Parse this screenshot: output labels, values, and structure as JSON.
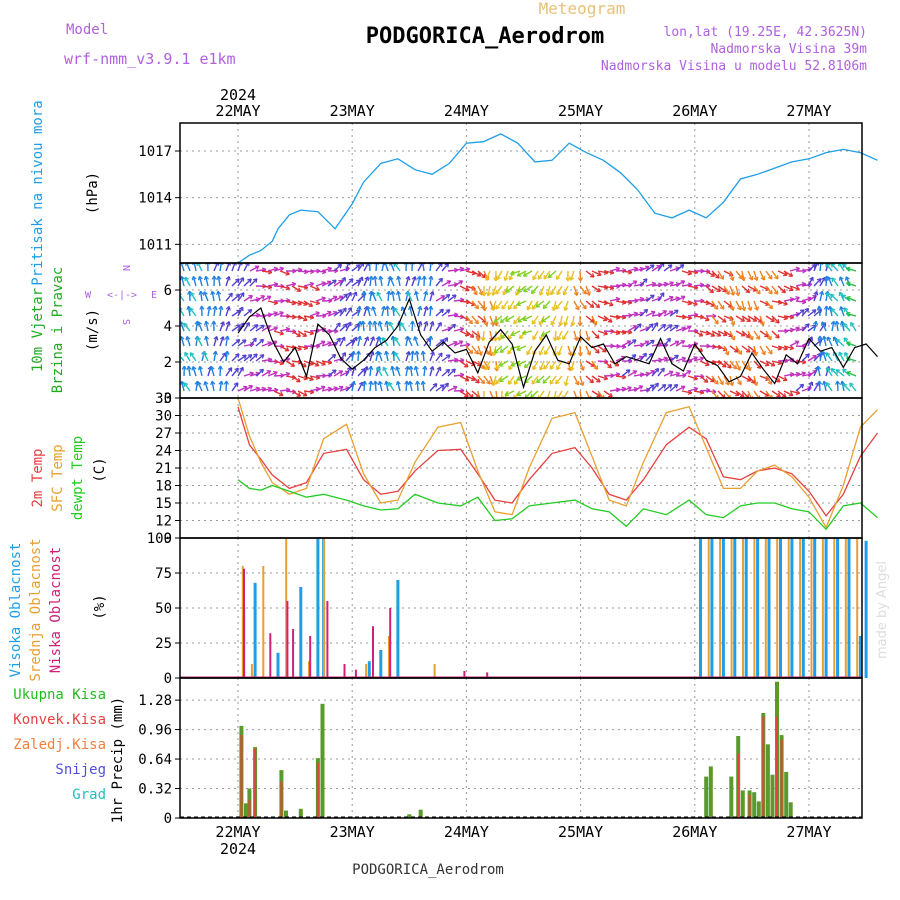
{
  "header": {
    "title": "Meteogram",
    "station": "PODGORICA_Aerodrom",
    "model_label": "Model",
    "model_name": "wrf-nmm_v3.9.1  e1km",
    "lonlat": "lon,lat (19.25E, 42.3625N)",
    "elevation": "Nadmorska Visina 39m",
    "model_elevation": "Nadmorska Visina u modelu 52.8106m",
    "year": "2024",
    "credit": "made by Angel",
    "footer": "PODGORICA_Aerodrom"
  },
  "days": [
    "22MAY",
    "23MAY",
    "24MAY",
    "25MAY",
    "26MAY",
    "27MAY"
  ],
  "colors": {
    "pressure": "#1e9ee8",
    "temp2m": "#e84040",
    "sfc": "#e8a030",
    "dewpt": "#22cc22",
    "wind_speed": "#000000",
    "high_cloud": "#1e9ee8",
    "mid_cloud": "#e8a030",
    "low_cloud": "#d0207a",
    "total_precip": "#5a9a2a",
    "convective_precip": "#e84040",
    "frozen_precip": "#f08040",
    "snow": "#5050e0",
    "hail": "#20c0c0"
  },
  "chart_data": [
    {
      "type": "line",
      "panel": "pressure",
      "ylabel": "Pritisak na nivou mora",
      "unit": "(hPa)",
      "yticks": [
        1011,
        1014,
        1017
      ],
      "ylim": [
        1009.8,
        1018.8
      ],
      "x_days": [
        0,
        0.1,
        0.2,
        0.3,
        0.35,
        0.45,
        0.55,
        0.7,
        0.85,
        1.0,
        1.1,
        1.25,
        1.4,
        1.55,
        1.7,
        1.85,
        2.0,
        2.15,
        2.3,
        2.45,
        2.6,
        2.75,
        2.9,
        3.05,
        3.2,
        3.35,
        3.5,
        3.65,
        3.8,
        3.95,
        4.1,
        4.25,
        4.4,
        4.55,
        4.7,
        4.85,
        5.0,
        5.15,
        5.3,
        5.45,
        5.6
      ],
      "values": [
        1009.8,
        1010.3,
        1010.6,
        1011.2,
        1012.0,
        1012.9,
        1013.2,
        1013.1,
        1012.0,
        1013.6,
        1015.0,
        1016.2,
        1016.5,
        1015.8,
        1015.5,
        1016.2,
        1017.5,
        1017.6,
        1018.1,
        1017.5,
        1016.3,
        1016.4,
        1017.5,
        1016.9,
        1016.4,
        1015.6,
        1014.5,
        1013.0,
        1012.7,
        1013.2,
        1012.7,
        1013.7,
        1015.2,
        1015.5,
        1015.9,
        1016.3,
        1016.5,
        1016.9,
        1017.1,
        1016.9,
        1016.4
      ]
    },
    {
      "type": "line",
      "panel": "wind",
      "ylabel": "10m Vjetar Brzina i Pravac",
      "unit": "(m/s)",
      "compass": "N",
      "compass_w": "W",
      "compass_e": "E",
      "compass_s": "S",
      "compass_arrows": "<-|->",
      "yticks": [
        0,
        2,
        4,
        6
      ],
      "ylim": [
        0,
        7.5
      ],
      "x_days": [
        0,
        0.1,
        0.2,
        0.3,
        0.4,
        0.5,
        0.6,
        0.7,
        0.8,
        0.9,
        1.0,
        1.1,
        1.2,
        1.3,
        1.4,
        1.5,
        1.6,
        1.7,
        1.8,
        1.9,
        2.0,
        2.1,
        2.2,
        2.3,
        2.4,
        2.5,
        2.6,
        2.7,
        2.8,
        2.9,
        3.0,
        3.1,
        3.2,
        3.3,
        3.4,
        3.5,
        3.6,
        3.7,
        3.8,
        3.9,
        4.0,
        4.1,
        4.2,
        4.3,
        4.4,
        4.5,
        4.6,
        4.7,
        4.8,
        4.9,
        5.0,
        5.1,
        5.2,
        5.3,
        5.4,
        5.5,
        5.6
      ],
      "values": [
        3.6,
        4.5,
        5.0,
        3.2,
        2.0,
        2.8,
        1.2,
        4.1,
        3.5,
        2.2,
        1.6,
        2.1,
        2.8,
        3.2,
        4.0,
        5.5,
        3.5,
        2.6,
        3.1,
        2.5,
        2.7,
        1.4,
        3.1,
        3.8,
        3.0,
        0.6,
        2.6,
        3.5,
        2.1,
        1.9,
        3.4,
        2.8,
        3.0,
        1.9,
        2.3,
        2.1,
        1.9,
        3.3,
        1.9,
        1.5,
        3.0,
        2.1,
        1.8,
        0.9,
        1.2,
        2.5,
        1.6,
        0.8,
        2.4,
        1.9,
        3.3,
        2.6,
        2.8,
        1.7,
        2.8,
        3.0,
        2.3
      ]
    },
    {
      "type": "line",
      "panel": "temperature",
      "ylabel_temp": "2m Temp",
      "ylabel_sfc": "SFC Temp",
      "ylabel_dew": "dewpt Temp",
      "unit": "(C)",
      "yticks": [
        9,
        12,
        15,
        18,
        21,
        24,
        27,
        30,
        33
      ],
      "ylim": [
        9,
        33
      ],
      "series": [
        {
          "name": "2m Temp",
          "x_days": [
            0,
            0.1,
            0.2,
            0.3,
            0.45,
            0.6,
            0.75,
            0.95,
            1.1,
            1.25,
            1.4,
            1.55,
            1.75,
            1.95,
            2.1,
            2.25,
            2.4,
            2.55,
            2.75,
            2.95,
            3.1,
            3.25,
            3.4,
            3.55,
            3.75,
            3.95,
            4.1,
            4.25,
            4.4,
            4.55,
            4.7,
            4.85,
            5.0,
            5.15,
            5.3,
            5.45,
            5.6
          ],
          "values": [
            31.5,
            25.0,
            22.5,
            19.8,
            17.5,
            18.5,
            23.5,
            24.2,
            19.0,
            16.5,
            17.0,
            20.5,
            24.0,
            24.2,
            20.0,
            15.5,
            15.0,
            19.0,
            23.5,
            24.5,
            21.0,
            16.5,
            15.5,
            19.0,
            25.0,
            28.0,
            26.0,
            19.5,
            19.0,
            20.5,
            21.0,
            20.0,
            17.0,
            12.8,
            16.5,
            23.0,
            27.0
          ]
        },
        {
          "name": "SFC Temp",
          "x_days": [
            0,
            0.1,
            0.2,
            0.3,
            0.45,
            0.6,
            0.75,
            0.95,
            1.1,
            1.25,
            1.4,
            1.55,
            1.75,
            1.95,
            2.1,
            2.25,
            2.4,
            2.55,
            2.75,
            2.95,
            3.1,
            3.25,
            3.4,
            3.55,
            3.75,
            3.95,
            4.1,
            4.25,
            4.4,
            4.55,
            4.7,
            4.85,
            5.0,
            5.15,
            5.3,
            5.45,
            5.6
          ],
          "values": [
            33.0,
            26.5,
            22.0,
            18.5,
            16.5,
            17.5,
            26.0,
            28.5,
            20.0,
            15.0,
            15.5,
            22.0,
            28.0,
            28.8,
            20.5,
            13.5,
            13.0,
            21.0,
            29.5,
            30.5,
            23.0,
            15.5,
            14.5,
            22.0,
            30.5,
            31.5,
            24.5,
            17.5,
            17.5,
            20.5,
            21.5,
            19.5,
            16.0,
            10.8,
            18.0,
            28.0,
            31.0
          ]
        },
        {
          "name": "dewpt Temp",
          "x_days": [
            0,
            0.1,
            0.2,
            0.3,
            0.45,
            0.6,
            0.75,
            0.95,
            1.1,
            1.25,
            1.4,
            1.55,
            1.75,
            1.95,
            2.1,
            2.25,
            2.4,
            2.55,
            2.75,
            2.95,
            3.1,
            3.25,
            3.4,
            3.55,
            3.75,
            3.95,
            4.1,
            4.25,
            4.4,
            4.55,
            4.7,
            4.85,
            5.0,
            5.15,
            5.3,
            5.45,
            5.6
          ],
          "values": [
            19.0,
            17.5,
            17.2,
            18.0,
            17.0,
            16.0,
            16.5,
            15.5,
            14.5,
            13.8,
            14.0,
            16.5,
            15.0,
            14.5,
            16.0,
            12.0,
            12.3,
            14.5,
            15.0,
            15.5,
            14.0,
            13.5,
            11.0,
            14.0,
            13.0,
            15.5,
            13.0,
            12.5,
            14.5,
            15.0,
            15.0,
            14.0,
            13.5,
            10.5,
            14.5,
            15.0,
            12.5
          ]
        }
      ]
    },
    {
      "type": "bar",
      "panel": "clouds",
      "ylabel_high": "Visoka Oblacnost",
      "ylabel_mid": "Srednja Oblacnost",
      "ylabel_low": "Niska Oblacnost",
      "unit": "(%)",
      "yticks": [
        0,
        25,
        50,
        75,
        100
      ],
      "ylim": [
        0,
        100
      ],
      "high": [
        [
          0.05,
          50
        ],
        [
          0.15,
          68
        ],
        [
          0.35,
          18
        ],
        [
          0.55,
          65
        ],
        [
          0.7,
          100
        ],
        [
          0.75,
          100
        ],
        [
          1.15,
          12
        ],
        [
          1.25,
          20
        ],
        [
          1.4,
          70
        ],
        [
          4.05,
          100
        ],
        [
          4.15,
          100
        ],
        [
          4.25,
          100
        ],
        [
          4.35,
          100
        ],
        [
          4.45,
          100
        ],
        [
          4.55,
          100
        ],
        [
          4.65,
          100
        ],
        [
          4.75,
          100
        ],
        [
          4.85,
          100
        ],
        [
          4.95,
          100
        ],
        [
          5.05,
          100
        ],
        [
          5.15,
          100
        ],
        [
          5.25,
          100
        ],
        [
          5.35,
          100
        ],
        [
          5.45,
          30
        ],
        [
          5.5,
          98
        ]
      ],
      "mid": [
        [
          0.02,
          80
        ],
        [
          0.1,
          10
        ],
        [
          0.2,
          80
        ],
        [
          0.4,
          100
        ],
        [
          0.6,
          12
        ],
        [
          0.73,
          100
        ],
        [
          1.1,
          10
        ],
        [
          1.3,
          30
        ],
        [
          1.7,
          10
        ],
        [
          4.1,
          100
        ],
        [
          4.2,
          100
        ],
        [
          4.3,
          100
        ],
        [
          4.4,
          100
        ],
        [
          4.5,
          100
        ],
        [
          4.6,
          100
        ],
        [
          4.7,
          100
        ],
        [
          4.8,
          100
        ],
        [
          4.9,
          100
        ],
        [
          5.0,
          100
        ],
        [
          5.1,
          100
        ],
        [
          5.2,
          100
        ],
        [
          5.3,
          100
        ],
        [
          5.4,
          100
        ]
      ],
      "low": [
        [
          0.07,
          78
        ],
        [
          0.3,
          32
        ],
        [
          0.45,
          55
        ],
        [
          0.5,
          35
        ],
        [
          0.65,
          30
        ],
        [
          0.8,
          55
        ],
        [
          0.95,
          10
        ],
        [
          1.05,
          6
        ],
        [
          1.2,
          37
        ],
        [
          1.35,
          50
        ],
        [
          2.0,
          5
        ],
        [
          2.2,
          4
        ]
      ]
    },
    {
      "type": "bar",
      "panel": "precipitation",
      "ylabel": "1hr Precip",
      "unit": "(mm)",
      "legend": [
        "Ukupna Kisa",
        "Konvek.Kisa",
        "Zaledj.Kisa",
        "Snijeg",
        "Grad"
      ],
      "yticks": [
        0,
        0.32,
        0.64,
        0.96,
        1.28
      ],
      "ylim": [
        0,
        1.52
      ],
      "total": [
        [
          0.03,
          1.0
        ],
        [
          0.07,
          0.16
        ],
        [
          0.1,
          0.32
        ],
        [
          0.15,
          0.77
        ],
        [
          0.38,
          0.52
        ],
        [
          0.42,
          0.08
        ],
        [
          0.55,
          0.1
        ],
        [
          0.7,
          0.65
        ],
        [
          0.74,
          1.24
        ],
        [
          1.5,
          0.04
        ],
        [
          1.6,
          0.09
        ],
        [
          4.1,
          0.45
        ],
        [
          4.14,
          0.56
        ],
        [
          4.32,
          0.45
        ],
        [
          4.38,
          0.89
        ],
        [
          4.42,
          0.3
        ],
        [
          4.48,
          0.3
        ],
        [
          4.52,
          0.28
        ],
        [
          4.56,
          0.18
        ],
        [
          4.6,
          1.14
        ],
        [
          4.64,
          0.8
        ],
        [
          4.68,
          0.47
        ],
        [
          4.72,
          1.48
        ],
        [
          4.76,
          0.9
        ],
        [
          4.8,
          0.5
        ],
        [
          4.84,
          0.17
        ]
      ],
      "convective": [
        [
          0.03,
          0.9
        ],
        [
          0.1,
          0.2
        ],
        [
          0.15,
          0.75
        ],
        [
          0.38,
          0.4
        ],
        [
          0.7,
          0.6
        ],
        [
          4.38,
          0.7
        ],
        [
          4.48,
          0.25
        ],
        [
          4.6,
          1.1
        ],
        [
          4.72,
          1.1
        ],
        [
          4.76,
          0.85
        ]
      ]
    }
  ]
}
